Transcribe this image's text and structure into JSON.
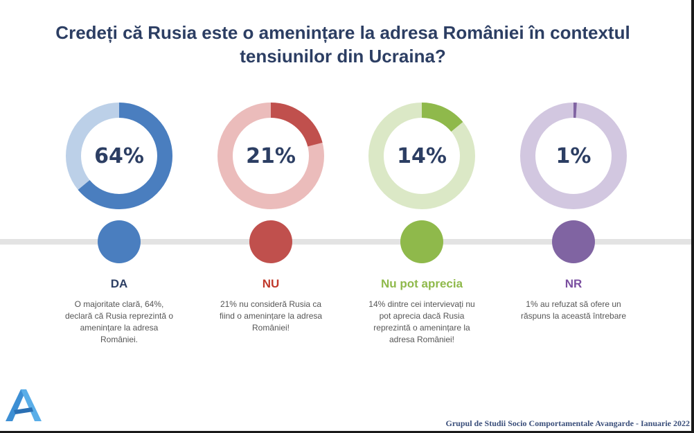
{
  "title_line1": "Credeți că Rusia este o amenințare la adresa României în contextul",
  "title_line2": "tensiunilor din Ucraina?",
  "footer": {
    "source": "Grupul de Studii Socio Comportamentale Avangarde",
    "separator": " - ",
    "date": "Ianuarie 2022"
  },
  "colors": {
    "title": "#2c3e63",
    "timeline": "#e3e3e3"
  },
  "chart_data": {
    "type": "pie",
    "title": "Credeți că Rusia este o amenințare la adresa României în contextul tensiunilor din Ucraina?",
    "categories": [
      "DA",
      "NU",
      "Nu pot aprecia",
      "NR"
    ],
    "values": [
      64,
      21,
      14,
      1
    ],
    "unit": "%",
    "items": [
      {
        "key": "da",
        "category": "DA",
        "value": 64,
        "label": "64%",
        "color": "#4a7ebf",
        "track": "#bcd0e8",
        "label_color": "#2c3e63",
        "description": "O majoritate clară, 64%, declară că Rusia reprezintă o amenințare la adresa României."
      },
      {
        "key": "nu",
        "category": "NU",
        "value": 21,
        "label": "21%",
        "color": "#c0504d",
        "track": "#ebbcbb",
        "label_color": "#c0392b",
        "description": "21% nu consideră Rusia ca fiind o amenințare la adresa României!"
      },
      {
        "key": "np",
        "category": "Nu pot aprecia",
        "value": 14,
        "label": "14%",
        "color": "#8fb94b",
        "track": "#dbe8c6",
        "label_color": "#8fb94b",
        "description": "14% dintre cei intervievați nu pot aprecia dacă Rusia reprezintă o amenințare la adresa României!"
      },
      {
        "key": "nr",
        "category": "NR",
        "value": 1,
        "label": "1%",
        "color": "#8064a2",
        "track": "#d2c7e0",
        "label_color": "#7a4fa0",
        "description": "1% au refuzat să ofere un răspuns la această întrebare"
      }
    ]
  }
}
